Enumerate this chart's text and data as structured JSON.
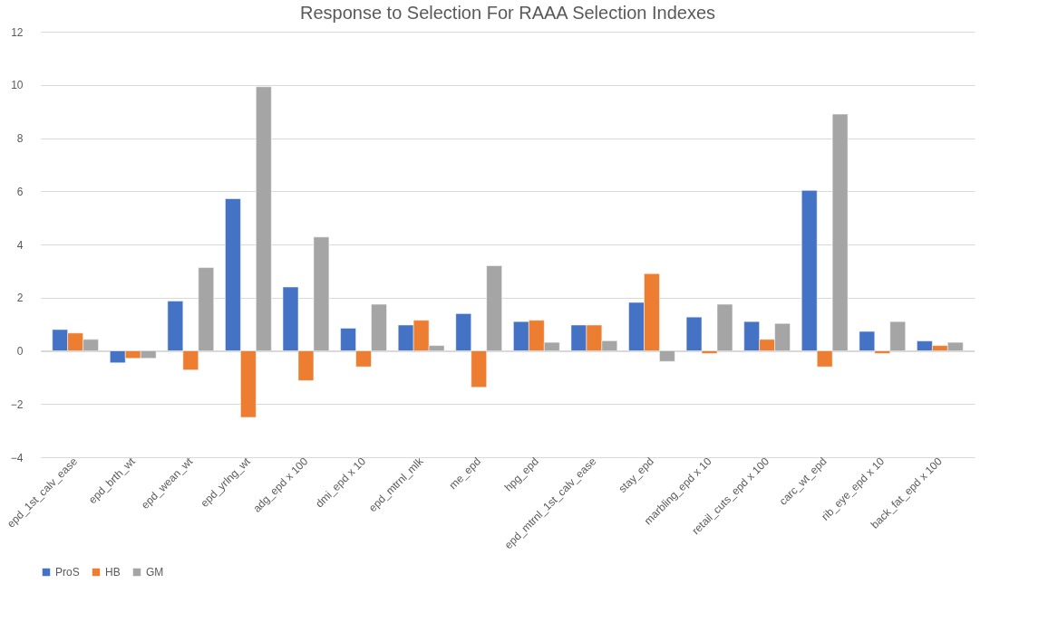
{
  "chart_data": {
    "type": "bar",
    "title": "Response to Selection For RAAA Selection Indexes",
    "categories": [
      "epd_1st_calv_ease",
      "epd_brth_wt",
      "epd_wean_wt",
      "epd_yrlng_wt",
      "adg_epd x 100",
      "dmi_epd x 10",
      "epd_mtrnl_mlk",
      "me_epd",
      "hpg_epd",
      "epd_mtrnl_1st_calv_ease",
      "stay_epd",
      "marbling_epd x 10",
      "retail_cuts_epd x 100",
      "carc_wt_epd",
      "rib_eye_epd x 10",
      "back_fat_epd x 100"
    ],
    "series": [
      {
        "name": "ProS",
        "color": "#4472c4",
        "values": [
          0.8,
          -0.45,
          1.87,
          5.72,
          2.4,
          0.85,
          0.97,
          1.4,
          1.1,
          0.97,
          1.82,
          1.27,
          1.1,
          6.03,
          0.73,
          0.37
        ]
      },
      {
        "name": "HB",
        "color": "#ed7d31",
        "values": [
          0.67,
          -0.28,
          -0.72,
          -2.5,
          -1.12,
          -0.6,
          1.15,
          -1.37,
          1.15,
          0.97,
          2.9,
          -0.1,
          0.43,
          -0.6,
          -0.1,
          0.2
        ]
      },
      {
        "name": "GM",
        "color": "#a5a5a5",
        "values": [
          0.43,
          -0.28,
          3.13,
          9.93,
          4.28,
          1.75,
          0.2,
          3.2,
          0.32,
          0.38,
          -0.4,
          1.75,
          1.03,
          8.9,
          1.1,
          0.32
        ]
      }
    ],
    "ylim": [
      -4,
      12
    ],
    "yticks": [
      -4,
      -2,
      0,
      2,
      4,
      6,
      8,
      10,
      12
    ],
    "grid": "y",
    "legend": "bottom"
  }
}
